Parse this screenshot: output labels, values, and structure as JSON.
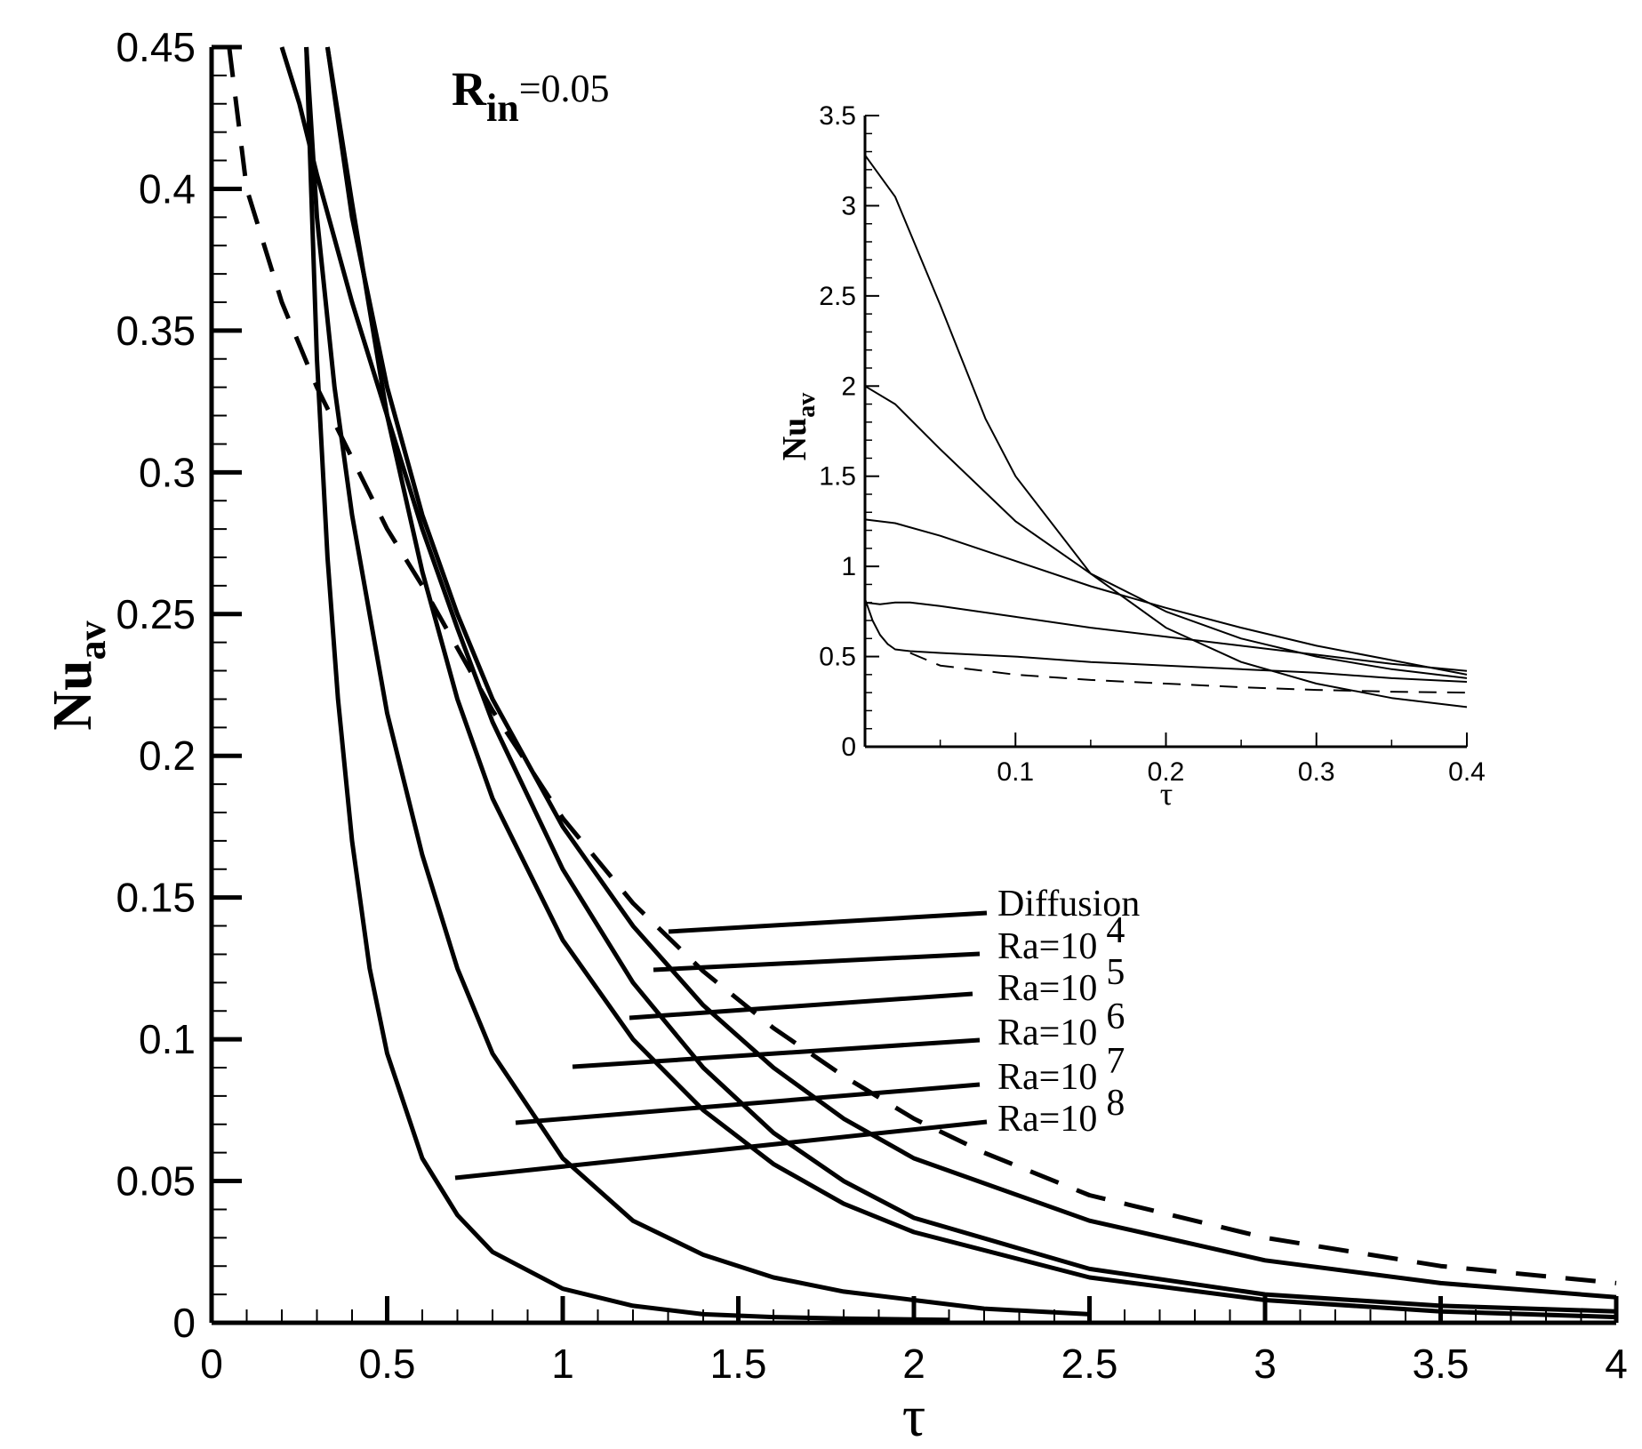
{
  "chart_data": {
    "type": "line",
    "title": "",
    "annotation": {
      "main": "R",
      "sub": "in",
      "rest": "=0.05"
    },
    "xlabel": "τ",
    "ylabel": {
      "main": "Nu",
      "sub": "av"
    },
    "xlim": [
      0,
      4
    ],
    "ylim": [
      0,
      0.45
    ],
    "xticks": [
      0,
      0.5,
      1,
      1.5,
      2,
      2.5,
      3,
      3.5,
      4
    ],
    "xtick_labels": [
      "0",
      "0.5",
      "1",
      "1.5",
      "2",
      "2.5",
      "3",
      "3.5",
      "4"
    ],
    "yticks": [
      0,
      0.05,
      0.1,
      0.15,
      0.2,
      0.25,
      0.3,
      0.35,
      0.4,
      0.45
    ],
    "ytick_labels": [
      "0",
      "0.05",
      "0.1",
      "0.15",
      "0.2",
      "0.25",
      "0.3",
      "0.35",
      "0.4",
      "0.45"
    ],
    "grid": false,
    "series": [
      {
        "name": "Diffusion",
        "dashed": true,
        "x": [
          0.05,
          0.1,
          0.2,
          0.3,
          0.4,
          0.5,
          0.6,
          0.7,
          0.8,
          1.0,
          1.2,
          1.4,
          1.6,
          1.8,
          2.0,
          2.2,
          2.5,
          3.0,
          3.5,
          4.0
        ],
        "y": [
          0.45,
          0.4,
          0.36,
          0.33,
          0.305,
          0.28,
          0.26,
          0.238,
          0.216,
          0.178,
          0.148,
          0.124,
          0.104,
          0.087,
          0.072,
          0.06,
          0.045,
          0.03,
          0.02,
          0.014
        ]
      },
      {
        "name": "Ra=10^4",
        "dashed": false,
        "x": [
          0.33,
          0.4,
          0.5,
          0.6,
          0.7,
          0.8,
          1.0,
          1.2,
          1.4,
          1.6,
          1.8,
          2.0,
          2.5,
          3.0,
          3.5,
          4.0
        ],
        "y": [
          0.45,
          0.39,
          0.33,
          0.285,
          0.25,
          0.22,
          0.175,
          0.14,
          0.112,
          0.09,
          0.072,
          0.058,
          0.036,
          0.022,
          0.014,
          0.009
        ]
      },
      {
        "name": "Ra=10^5",
        "dashed": false,
        "x": [
          0.2,
          0.25,
          0.3,
          0.4,
          0.5,
          0.6,
          0.7,
          0.8,
          1.0,
          1.2,
          1.4,
          1.6,
          1.8,
          2.0,
          2.5,
          3.0,
          3.5,
          4.0
        ],
        "y": [
          0.45,
          0.43,
          0.405,
          0.36,
          0.32,
          0.28,
          0.245,
          0.212,
          0.16,
          0.12,
          0.09,
          0.067,
          0.05,
          0.037,
          0.019,
          0.01,
          0.006,
          0.004
        ]
      },
      {
        "name": "Ra=10^6",
        "dashed": false,
        "x": [
          0.33,
          0.4,
          0.5,
          0.6,
          0.7,
          0.8,
          1.0,
          1.2,
          1.4,
          1.6,
          1.8,
          2.0,
          2.5,
          3.0,
          3.5,
          4.0
        ],
        "y": [
          0.45,
          0.395,
          0.32,
          0.265,
          0.22,
          0.185,
          0.135,
          0.1,
          0.075,
          0.056,
          0.042,
          0.032,
          0.016,
          0.008,
          0.004,
          0.002
        ]
      },
      {
        "name": "Ra=10^7",
        "dashed": false,
        "x": [
          0.27,
          0.3,
          0.35,
          0.4,
          0.5,
          0.6,
          0.7,
          0.8,
          1.0,
          1.2,
          1.4,
          1.6,
          1.8,
          2.0,
          2.2,
          2.5
        ],
        "y": [
          0.45,
          0.39,
          0.33,
          0.285,
          0.215,
          0.165,
          0.125,
          0.095,
          0.058,
          0.036,
          0.024,
          0.016,
          0.011,
          0.008,
          0.005,
          0.003
        ]
      },
      {
        "name": "Ra=10^8",
        "dashed": false,
        "x": [
          0.27,
          0.3,
          0.33,
          0.36,
          0.4,
          0.45,
          0.5,
          0.6,
          0.7,
          0.8,
          1.0,
          1.2,
          1.4,
          1.6,
          1.8,
          2.1
        ],
        "y": [
          0.45,
          0.34,
          0.27,
          0.22,
          0.17,
          0.125,
          0.095,
          0.058,
          0.038,
          0.025,
          0.012,
          0.006,
          0.003,
          0.002,
          0.0015,
          0.001
        ]
      }
    ],
    "legend": {
      "placement": "callout-leaders-right",
      "entries": [
        {
          "base": "Diffusion",
          "exp": ""
        },
        {
          "base": "Ra=10",
          "exp": "4"
        },
        {
          "base": "Ra=10",
          "exp": "5"
        },
        {
          "base": "Ra=10",
          "exp": "6"
        },
        {
          "base": "Ra=10",
          "exp": "7"
        },
        {
          "base": "Ra=10",
          "exp": "8"
        }
      ]
    },
    "inset": {
      "type": "line",
      "xlabel": "τ",
      "ylabel": {
        "main": "Nu",
        "sub": "av"
      },
      "xlim": [
        0,
        0.4
      ],
      "ylim": [
        0,
        3.5
      ],
      "xticks": [
        0.1,
        0.2,
        0.3,
        0.4
      ],
      "xtick_labels": [
        "0.1",
        "0.2",
        "0.3",
        "0.4"
      ],
      "yticks": [
        0,
        0.5,
        1,
        1.5,
        2,
        2.5,
        3,
        3.5
      ],
      "ytick_labels": [
        "0",
        "0.5",
        "1",
        "1.5",
        "2",
        "2.5",
        "3",
        "3.5"
      ],
      "series": [
        {
          "name": "Diffusion",
          "dashed": true,
          "x": [
            0.03,
            0.05,
            0.1,
            0.15,
            0.2,
            0.25,
            0.3,
            0.35,
            0.4
          ],
          "y": [
            0.52,
            0.45,
            0.4,
            0.37,
            0.35,
            0.33,
            0.315,
            0.305,
            0.3
          ]
        },
        {
          "name": "Ra=10^4",
          "dashed": false,
          "x": [
            0,
            0.005,
            0.01,
            0.015,
            0.02,
            0.03,
            0.05,
            0.1,
            0.15,
            0.2,
            0.25,
            0.3,
            0.35,
            0.4
          ],
          "y": [
            0.82,
            0.7,
            0.62,
            0.57,
            0.54,
            0.53,
            0.52,
            0.5,
            0.47,
            0.45,
            0.43,
            0.41,
            0.38,
            0.36
          ]
        },
        {
          "name": "Ra=10^5",
          "dashed": false,
          "x": [
            0,
            0.01,
            0.02,
            0.03,
            0.05,
            0.1,
            0.15,
            0.2,
            0.25,
            0.3,
            0.35,
            0.4
          ],
          "y": [
            0.8,
            0.79,
            0.8,
            0.8,
            0.78,
            0.72,
            0.66,
            0.61,
            0.56,
            0.51,
            0.46,
            0.42
          ]
        },
        {
          "name": "Ra=10^6",
          "dashed": false,
          "x": [
            0,
            0.02,
            0.05,
            0.1,
            0.15,
            0.2,
            0.25,
            0.3,
            0.35,
            0.4
          ],
          "y": [
            1.26,
            1.24,
            1.17,
            1.03,
            0.89,
            0.77,
            0.66,
            0.56,
            0.48,
            0.4
          ]
        },
        {
          "name": "Ra=10^7",
          "dashed": false,
          "x": [
            0,
            0.02,
            0.05,
            0.1,
            0.15,
            0.2,
            0.25,
            0.3,
            0.35,
            0.4
          ],
          "y": [
            2.0,
            1.9,
            1.65,
            1.25,
            0.96,
            0.75,
            0.6,
            0.5,
            0.43,
            0.38
          ]
        },
        {
          "name": "Ra=10^8",
          "dashed": false,
          "x": [
            0,
            0.02,
            0.05,
            0.08,
            0.1,
            0.15,
            0.2,
            0.25,
            0.3,
            0.35,
            0.4
          ],
          "y": [
            3.28,
            3.05,
            2.45,
            1.82,
            1.5,
            0.96,
            0.66,
            0.47,
            0.35,
            0.27,
            0.22
          ]
        }
      ]
    }
  }
}
